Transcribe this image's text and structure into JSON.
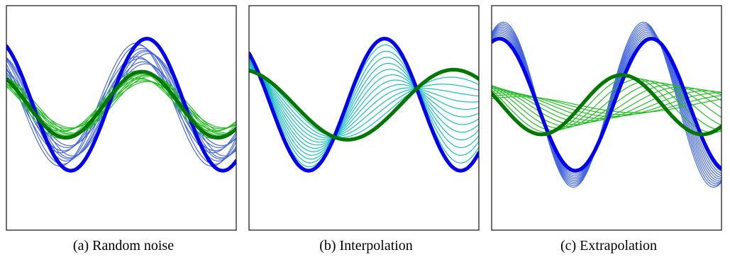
{
  "chart_data": [
    {
      "type": "line",
      "caption": "(a) Random noise",
      "xlim": [
        0,
        10
      ],
      "ylim": [
        -1.9,
        1.5
      ],
      "axes_visible": false,
      "grid": false,
      "series": [
        {
          "role": "target",
          "color": "#0000ee",
          "thick": true,
          "amplitude": 1.0,
          "frequency": 0.95,
          "phase": 2.05
        },
        {
          "role": "target",
          "color": "#007700",
          "thick": true,
          "amplitude": 0.5,
          "frequency": 0.95,
          "phase": 2.25
        },
        {
          "role": "samples",
          "color": "#4466dd",
          "count": 10,
          "amplitude": [
            0.62,
            0.95
          ],
          "frequency": 0.95,
          "phase": [
            1.9,
            2.55
          ]
        },
        {
          "role": "samples",
          "color": "#22bb22",
          "count": 10,
          "amplitude": [
            0.35,
            0.52
          ],
          "frequency": 0.95,
          "phase": [
            1.8,
            2.5
          ]
        }
      ]
    },
    {
      "type": "line",
      "caption": "(b) Interpolation",
      "xlim": [
        0,
        10
      ],
      "ylim": [
        -1.9,
        1.5
      ],
      "axes_visible": false,
      "grid": false,
      "series": [
        {
          "role": "target",
          "color": "#0000ee",
          "thick": true,
          "amplitude": 1.0,
          "frequency": 0.95,
          "phase": 2.25
        },
        {
          "role": "target",
          "color": "#007700",
          "thick": true,
          "amplitude": 0.53,
          "frequency": 0.68,
          "phase": 1.8
        },
        {
          "role": "interpolation",
          "color": "#11bbbb",
          "count": 12
        }
      ]
    },
    {
      "type": "line",
      "caption": "(c) Extrapolation",
      "xlim": [
        0,
        10
      ],
      "ylim": [
        -1.9,
        1.5
      ],
      "axes_visible": false,
      "grid": false,
      "series": [
        {
          "role": "target",
          "color": "#0000ee",
          "thick": true,
          "amplitude": 1.0,
          "frequency": 0.95,
          "phase": 1.25
        },
        {
          "role": "target",
          "color": "#007700",
          "thick": true,
          "amplitude": 0.45,
          "frequency": 0.9,
          "phase": 2.75
        },
        {
          "role": "extrapolation",
          "color": "#4466dd",
          "count": 11,
          "amplitude": [
            1.0,
            1.25
          ],
          "frequency": [
            0.95,
            1.03
          ],
          "phase": [
            1.25,
            1.05
          ]
        },
        {
          "role": "extrapolation",
          "color": "#22bb22",
          "count": 12,
          "amplitude": [
            0.45,
            0.12
          ],
          "frequency": [
            0.9,
            0.62
          ],
          "phase": [
            2.75,
            0.85
          ]
        }
      ]
    }
  ]
}
